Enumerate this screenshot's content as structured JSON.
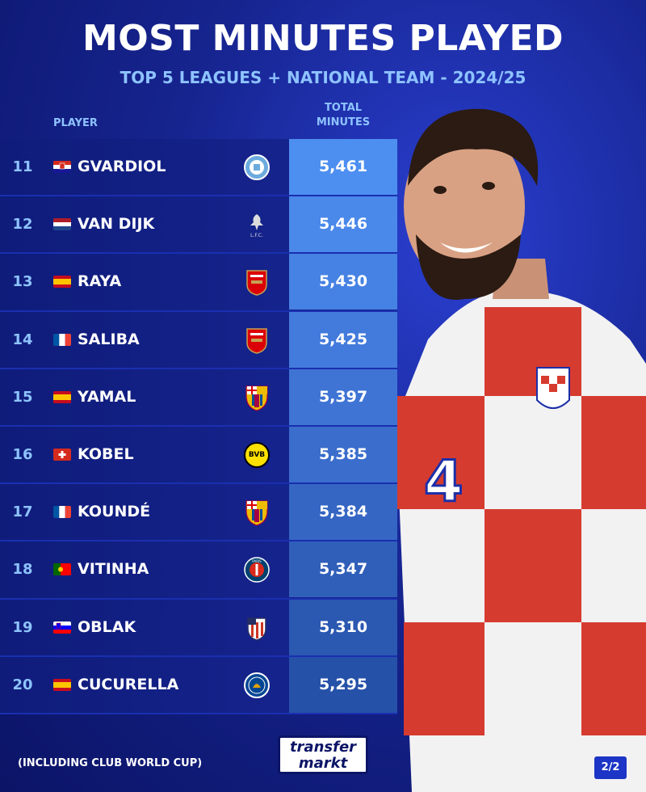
{
  "header": {
    "title": "MOST MINUTES PLAYED",
    "subtitle": "TOP 5 LEAGUES + NATIONAL TEAM - 2024/25"
  },
  "columns": {
    "player": "PLAYER",
    "total_line1": "TOTAL",
    "total_line2": "MINUTES"
  },
  "rows": [
    {
      "rank": "11",
      "name": "GVARDIOL",
      "minutes": "5,461",
      "flag": "croatia-flag",
      "club": "manchester-city-crest",
      "minutes_bg": "#4d8ff0"
    },
    {
      "rank": "12",
      "name": "VAN DIJK",
      "minutes": "5,446",
      "flag": "netherlands-flag",
      "club": "liverpool-crest",
      "minutes_bg": "#4a88ea"
    },
    {
      "rank": "13",
      "name": "RAYA",
      "minutes": "5,430",
      "flag": "spain-flag",
      "club": "arsenal-crest",
      "minutes_bg": "#4682e3"
    },
    {
      "rank": "14",
      "name": "SALIBA",
      "minutes": "5,425",
      "flag": "france-flag",
      "club": "arsenal-crest",
      "minutes_bg": "#437bdc"
    },
    {
      "rank": "15",
      "name": "YAMAL",
      "minutes": "5,397",
      "flag": "spain-flag",
      "club": "barcelona-crest",
      "minutes_bg": "#3f74d4"
    },
    {
      "rank": "16",
      "name": "KOBEL",
      "minutes": "5,385",
      "flag": "switzerland-flag",
      "club": "dortmund-crest",
      "minutes_bg": "#3a6dcc"
    },
    {
      "rank": "17",
      "name": "KOUNDÉ",
      "minutes": "5,384",
      "flag": "france-flag",
      "club": "barcelona-crest",
      "minutes_bg": "#3566c3"
    },
    {
      "rank": "18",
      "name": "VITINHA",
      "minutes": "5,347",
      "flag": "portugal-flag",
      "club": "psg-crest",
      "minutes_bg": "#305fba"
    },
    {
      "rank": "19",
      "name": "OBLAK",
      "minutes": "5,310",
      "flag": "slovenia-flag",
      "club": "atletico-crest",
      "minutes_bg": "#2b58b1"
    },
    {
      "rank": "20",
      "name": "CUCURELLA",
      "minutes": "5,295",
      "flag": "spain-flag",
      "club": "chelsea-crest",
      "minutes_bg": "#2651a8"
    }
  ],
  "footer": {
    "note": "(INCLUDING CLUB WORLD CUP)",
    "logo_line1": "transfer",
    "logo_line2": "markt",
    "page": "2/2"
  },
  "crest_text": {
    "liverpool": "L.F.C.",
    "psg": "PARIS",
    "bvb": "BVB"
  }
}
